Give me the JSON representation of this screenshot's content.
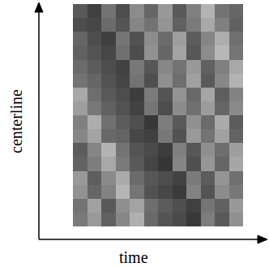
{
  "chart_data": {
    "type": "heatmap",
    "x_label": "time",
    "y_label": "centerline",
    "z": [
      [
        0.35,
        0.25,
        0.45,
        0.3,
        0.55,
        0.4,
        0.6,
        0.35,
        0.5,
        0.7,
        0.45,
        0.4
      ],
      [
        0.3,
        0.28,
        0.42,
        0.33,
        0.52,
        0.45,
        0.58,
        0.38,
        0.48,
        0.66,
        0.5,
        0.38
      ],
      [
        0.4,
        0.3,
        0.25,
        0.46,
        0.32,
        0.55,
        0.42,
        0.62,
        0.36,
        0.52,
        0.68,
        0.44
      ],
      [
        0.38,
        0.33,
        0.28,
        0.44,
        0.3,
        0.57,
        0.4,
        0.64,
        0.34,
        0.55,
        0.72,
        0.46
      ],
      [
        0.42,
        0.36,
        0.3,
        0.26,
        0.47,
        0.34,
        0.53,
        0.45,
        0.6,
        0.38,
        0.5,
        0.66
      ],
      [
        0.45,
        0.4,
        0.32,
        0.27,
        0.45,
        0.31,
        0.56,
        0.43,
        0.63,
        0.35,
        0.53,
        0.7
      ],
      [
        0.66,
        0.43,
        0.35,
        0.3,
        0.24,
        0.48,
        0.33,
        0.58,
        0.41,
        0.65,
        0.37,
        0.51
      ],
      [
        0.62,
        0.47,
        0.38,
        0.32,
        0.26,
        0.46,
        0.3,
        0.55,
        0.44,
        0.61,
        0.4,
        0.54
      ],
      [
        0.5,
        0.68,
        0.44,
        0.36,
        0.31,
        0.22,
        0.49,
        0.35,
        0.57,
        0.42,
        0.67,
        0.36
      ],
      [
        0.53,
        0.64,
        0.41,
        0.39,
        0.28,
        0.25,
        0.47,
        0.32,
        0.6,
        0.45,
        0.63,
        0.39
      ],
      [
        0.36,
        0.52,
        0.7,
        0.45,
        0.33,
        0.29,
        0.24,
        0.5,
        0.34,
        0.56,
        0.43,
        0.62
      ],
      [
        0.39,
        0.49,
        0.66,
        0.48,
        0.35,
        0.27,
        0.21,
        0.52,
        0.31,
        0.59,
        0.4,
        0.65
      ],
      [
        0.6,
        0.37,
        0.54,
        0.67,
        0.42,
        0.34,
        0.3,
        0.26,
        0.48,
        0.36,
        0.58,
        0.44
      ],
      [
        0.57,
        0.4,
        0.51,
        0.71,
        0.46,
        0.32,
        0.28,
        0.23,
        0.51,
        0.33,
        0.55,
        0.47
      ],
      [
        0.45,
        0.63,
        0.35,
        0.56,
        0.64,
        0.43,
        0.36,
        0.31,
        0.25,
        0.46,
        0.38,
        0.6
      ],
      [
        0.48,
        0.6,
        0.38,
        0.53,
        0.69,
        0.41,
        0.33,
        0.29,
        0.22,
        0.49,
        0.35,
        0.57
      ]
    ],
    "zlim": [
      0,
      1
    ],
    "color": "gray",
    "tick_labels": false
  }
}
